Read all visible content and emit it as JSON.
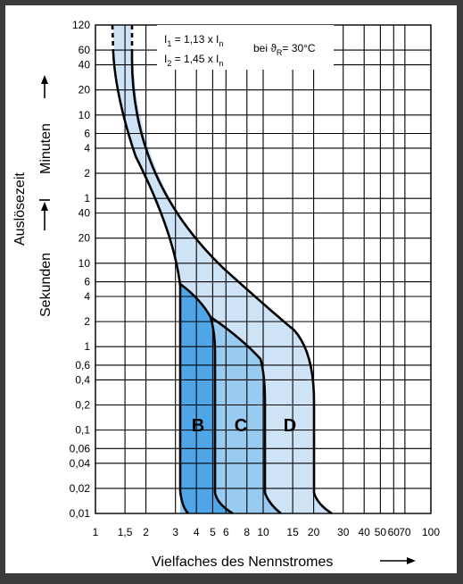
{
  "chart_data": {
    "type": "line",
    "title": "",
    "xlabel": "Vielfaches des Nennstromes",
    "ylabel": "Auslösezeit",
    "ylabel_seconds": "Sekunden",
    "ylabel_minutes": "Minuten",
    "x_scale": "log",
    "y_scale": "log",
    "xlim": [
      1,
      100
    ],
    "grid": true,
    "x_ticks": [
      {
        "value": 1,
        "label": "1"
      },
      {
        "value": 1.5,
        "label": "1,5"
      },
      {
        "value": 2,
        "label": "2"
      },
      {
        "value": 3,
        "label": "3"
      },
      {
        "value": 4,
        "label": "4"
      },
      {
        "value": 5,
        "label": "5"
      },
      {
        "value": 6,
        "label": "6"
      },
      {
        "value": 8,
        "label": "8"
      },
      {
        "value": 10,
        "label": "10"
      },
      {
        "value": 15,
        "label": "15"
      },
      {
        "value": 20,
        "label": "20"
      },
      {
        "value": 30,
        "label": "30"
      },
      {
        "value": 40,
        "label": "40"
      },
      {
        "value": 50,
        "label": "50"
      },
      {
        "value": 60,
        "label": "60"
      },
      {
        "value": 70,
        "label": "70"
      },
      {
        "value": 100,
        "label": "100"
      }
    ],
    "y_ticks_seconds": [
      {
        "value": 0.01,
        "label": "0,01"
      },
      {
        "value": 0.02,
        "label": "0,02"
      },
      {
        "value": 0.04,
        "label": "0,04"
      },
      {
        "value": 0.06,
        "label": "0,06"
      },
      {
        "value": 0.1,
        "label": "0,1"
      },
      {
        "value": 0.2,
        "label": "0,2"
      },
      {
        "value": 0.4,
        "label": "0,4"
      },
      {
        "value": 0.6,
        "label": "0,6"
      },
      {
        "value": 1,
        "label": "1"
      },
      {
        "value": 2,
        "label": "2"
      },
      {
        "value": 4,
        "label": "4"
      },
      {
        "value": 6,
        "label": "6"
      },
      {
        "value": 10,
        "label": "10"
      },
      {
        "value": 20,
        "label": "20"
      },
      {
        "value": 40,
        "label": "40"
      }
    ],
    "y_ticks_minutes": [
      {
        "value": 1,
        "label": "1"
      },
      {
        "value": 2,
        "label": "2"
      },
      {
        "value": 4,
        "label": "4"
      },
      {
        "value": 6,
        "label": "6"
      },
      {
        "value": 10,
        "label": "10"
      },
      {
        "value": 20,
        "label": "20"
      },
      {
        "value": 40,
        "label": "40"
      },
      {
        "value": 60,
        "label": "60"
      },
      {
        "value": 120,
        "label": "120"
      }
    ],
    "annotations": {
      "i1_main": "I",
      "i1_sub": "1",
      "i1_rest": " = 1,13 x I",
      "i1_n": "n",
      "i2_main": "I",
      "i2_sub": "2",
      "i2_rest": " = 1,45 x I",
      "i2_n": "n",
      "temp_main": "bei ϑ",
      "temp_sub": "R",
      "temp_rest": "= 30°C"
    },
    "band_colors": {
      "upper_envelope": "#cfe3f7",
      "B": "#4ea6e8",
      "C": "#99caef",
      "D": "#cfe3f7",
      "grid": "#000000",
      "background": "#ffffff"
    },
    "series": [
      {
        "name": "B",
        "type": "instantaneous",
        "min_multiple": 3,
        "max_multiple": 5
      },
      {
        "name": "C",
        "type": "instantaneous",
        "min_multiple": 5,
        "max_multiple": 10
      },
      {
        "name": "D",
        "type": "instantaneous",
        "min_multiple": 10,
        "max_multiple": 20
      }
    ],
    "thermal_lower_curve": [
      {
        "x": 1.13,
        "t_min": 120
      },
      {
        "x": 1.15,
        "t_min": 40
      },
      {
        "x": 1.2,
        "t_min": 20
      },
      {
        "x": 1.3,
        "t_min": 6
      },
      {
        "x": 1.5,
        "t_min": 1.6
      },
      {
        "x": 2,
        "t_s": 40
      },
      {
        "x": 2.5,
        "t_s": 10
      },
      {
        "x": 3,
        "t_s": 5
      }
    ],
    "thermal_upper_curve": [
      {
        "x": 1.45,
        "t_min": 120
      },
      {
        "x": 1.55,
        "t_min": 20
      },
      {
        "x": 1.8,
        "t_min": 4
      },
      {
        "x": 2.3,
        "t_s": 40
      },
      {
        "x": 3,
        "t_s": 15
      },
      {
        "x": 5,
        "t_s": 5
      },
      {
        "x": 10,
        "t_s": 2
      },
      {
        "x": 20,
        "t_s": 0.6
      }
    ]
  }
}
